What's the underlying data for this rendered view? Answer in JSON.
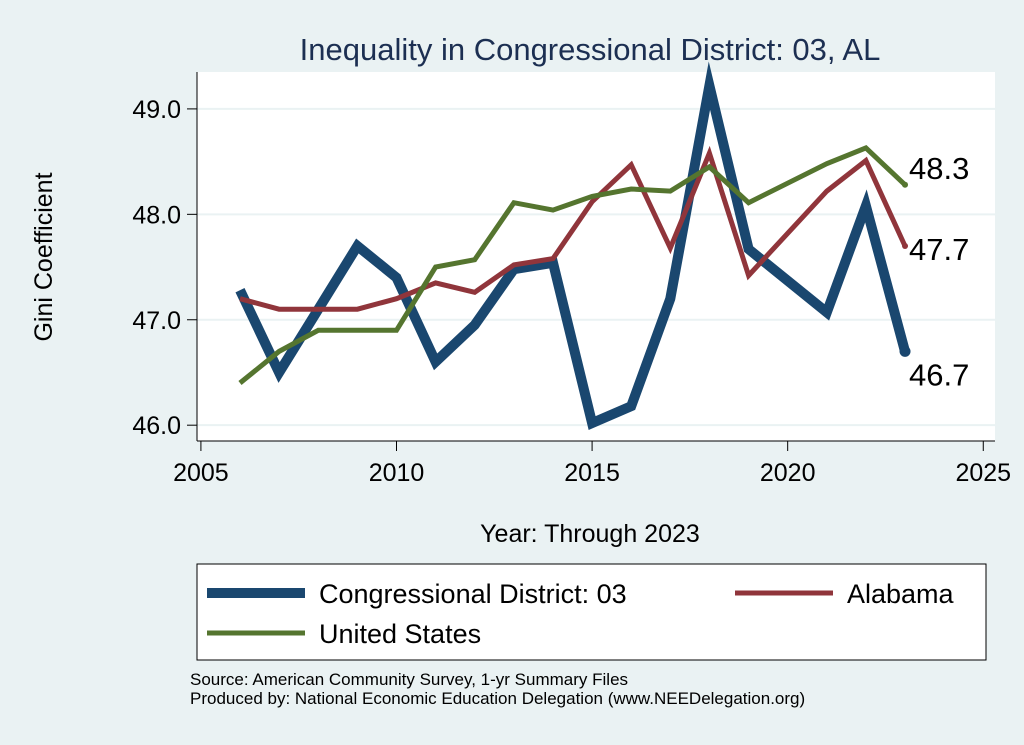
{
  "chart_data": {
    "type": "line",
    "title": "Inequality in Congressional District:  03, AL",
    "xlabel": "Year: Through 2023",
    "ylabel": "Gini Coefficient",
    "xlim": [
      2005,
      2025
    ],
    "ylim": [
      45.85,
      49.35
    ],
    "xticks": [
      2005,
      2010,
      2015,
      2020,
      2025
    ],
    "yticks": [
      46.0,
      47.0,
      48.0,
      49.0
    ],
    "ytick_labels": [
      "46.0",
      "47.0",
      "48.0",
      "49.0"
    ],
    "grid": true,
    "series": [
      {
        "name": "Congressional District:  03",
        "color": "#1a476f",
        "x": [
          2006,
          2007,
          2008,
          2009,
          2010,
          2011,
          2012,
          2013,
          2014,
          2015,
          2016,
          2017,
          2018,
          2019,
          2021,
          2022,
          2023
        ],
        "y": [
          47.28,
          46.5,
          47.1,
          47.7,
          47.4,
          46.6,
          46.95,
          47.48,
          47.54,
          46.02,
          46.18,
          47.2,
          49.22,
          47.67,
          47.07,
          48.08,
          46.7
        ],
        "end_label": "46.7"
      },
      {
        "name": "Alabama",
        "color": "#90353b",
        "x": [
          2006,
          2007,
          2008,
          2009,
          2010,
          2011,
          2012,
          2013,
          2014,
          2015,
          2016,
          2017,
          2018,
          2019,
          2021,
          2022,
          2023
        ],
        "y": [
          47.2,
          47.1,
          47.1,
          47.1,
          47.2,
          47.35,
          47.26,
          47.52,
          47.58,
          48.12,
          48.47,
          47.68,
          48.58,
          47.42,
          48.22,
          48.51,
          47.7
        ],
        "end_label": "47.7"
      },
      {
        "name": "United States",
        "color": "#55752f",
        "x": [
          2006,
          2007,
          2008,
          2009,
          2010,
          2011,
          2012,
          2013,
          2014,
          2015,
          2016,
          2017,
          2018,
          2019,
          2021,
          2022,
          2023
        ],
        "y": [
          46.4,
          46.7,
          46.9,
          46.9,
          46.9,
          47.5,
          47.57,
          48.11,
          48.04,
          48.17,
          48.24,
          48.22,
          48.45,
          48.11,
          48.48,
          48.63,
          48.28
        ],
        "end_label": "48.3"
      }
    ],
    "legend_position": "bottom",
    "source": "Source: American Community Survey, 1-yr Summary Files",
    "produced_by": "Produced by: National Economic Education Delegation (www.NEEDelegation.org)"
  }
}
